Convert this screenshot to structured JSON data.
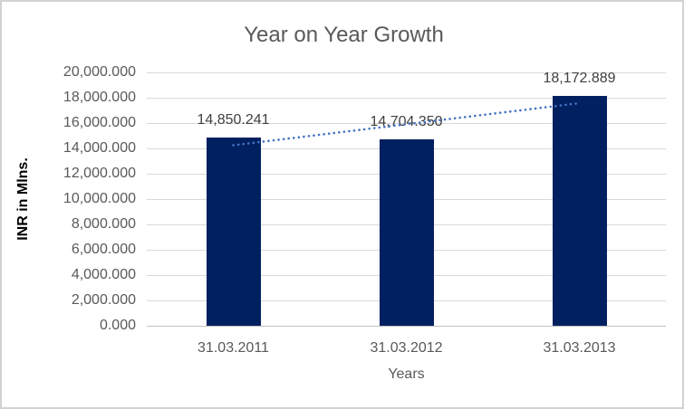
{
  "chart_data": {
    "type": "bar",
    "title": "Year on Year Growth",
    "xlabel": "Years",
    "ylabel": "INR in Mlns.",
    "categories": [
      "31.03.2011",
      "31.03.2012",
      "31.03.2013"
    ],
    "values": [
      14850.241,
      14704.35,
      18172.889
    ],
    "data_labels": [
      "14,850.241",
      "14,704.350",
      "18,172.889"
    ],
    "y_ticks": [
      "0.000",
      "2,000.000",
      "4,000.000",
      "6,000.000",
      "8,000.000",
      "10,000.000",
      "12,000.000",
      "14,000.000",
      "16,000.000",
      "18,000.000",
      "20,000.000"
    ],
    "ylim": [
      0,
      20000
    ],
    "grid": true,
    "legend": false,
    "trendline": {
      "style": "dotted",
      "fit": "linear"
    },
    "colors": {
      "bar": "#002060",
      "trendline": "#4472C4",
      "gridline": "#d9d9d9",
      "axis_line": "#bfbfbf",
      "title_text": "#595959",
      "tick_text": "#595959",
      "data_label_text": "#404040",
      "axis_title_text": "#000000"
    }
  }
}
